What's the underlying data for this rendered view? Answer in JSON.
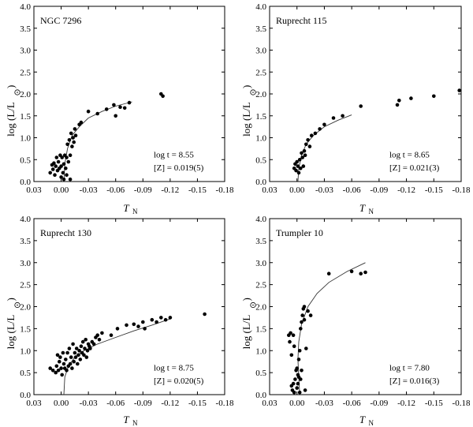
{
  "chart_data": [
    {
      "type": "scatter",
      "title": "NGC 7296",
      "xlabel": "T",
      "xlabel_sub": "N",
      "ylabel": "log (L/L",
      "ylabel_suffix": ")",
      "xlim": [
        0.03,
        -0.18
      ],
      "ylim": [
        0.0,
        4.0
      ],
      "xticks": [
        "0.03",
        "0.00",
        "-0.03",
        "-0.06",
        "-0.09",
        "-0.12",
        "-0.15",
        "-0.18"
      ],
      "yticks": [
        "0.0",
        "0.5",
        "1.0",
        "1.5",
        "2.0",
        "2.5",
        "3.0",
        "3.5",
        "4.0"
      ],
      "annotation_age": "log t = 8.55",
      "annotation_z": "[Z] = 0.019(5)",
      "points": [
        [
          0.012,
          0.2
        ],
        [
          0.01,
          0.38
        ],
        [
          0.009,
          0.28
        ],
        [
          0.008,
          0.42
        ],
        [
          0.007,
          0.15
        ],
        [
          0.006,
          0.35
        ],
        [
          0.005,
          0.55
        ],
        [
          0.004,
          0.25
        ],
        [
          0.003,
          0.45
        ],
        [
          0.002,
          0.3
        ],
        [
          0.001,
          0.6
        ],
        [
          0.0,
          0.1
        ],
        [
          0.0,
          0.35
        ],
        [
          -0.001,
          0.55
        ],
        [
          -0.002,
          0.2
        ],
        [
          -0.003,
          0.4
        ],
        [
          -0.003,
          0.05
        ],
        [
          -0.004,
          0.6
        ],
        [
          -0.005,
          0.3
        ],
        [
          -0.006,
          0.55
        ],
        [
          -0.006,
          0.15
        ],
        [
          -0.007,
          0.85
        ],
        [
          -0.008,
          0.45
        ],
        [
          -0.009,
          0.95
        ],
        [
          -0.01,
          0.6
        ],
        [
          -0.01,
          0.05
        ],
        [
          -0.011,
          1.1
        ],
        [
          -0.012,
          0.8
        ],
        [
          -0.013,
          1.0
        ],
        [
          -0.014,
          0.9
        ],
        [
          -0.015,
          1.2
        ],
        [
          -0.016,
          1.05
        ],
        [
          -0.02,
          1.3
        ],
        [
          -0.022,
          1.35
        ],
        [
          -0.03,
          1.6
        ],
        [
          -0.04,
          1.55
        ],
        [
          -0.05,
          1.65
        ],
        [
          -0.058,
          1.75
        ],
        [
          -0.06,
          1.5
        ],
        [
          -0.065,
          1.7
        ],
        [
          -0.07,
          1.68
        ],
        [
          -0.075,
          1.8
        ],
        [
          -0.11,
          2.0
        ],
        [
          -0.112,
          1.95
        ]
      ],
      "isochrone": [
        [
          -0.003,
          0.0
        ],
        [
          -0.004,
          0.4
        ],
        [
          -0.007,
          0.75
        ],
        [
          -0.012,
          1.05
        ],
        [
          -0.02,
          1.25
        ],
        [
          -0.03,
          1.45
        ],
        [
          -0.045,
          1.6
        ],
        [
          -0.06,
          1.72
        ],
        [
          -0.078,
          1.82
        ]
      ]
    },
    {
      "type": "scatter",
      "title": "Ruprecht 115",
      "xlabel": "T",
      "xlabel_sub": "N",
      "ylabel": "log (L/L",
      "ylabel_suffix": ")",
      "xlim": [
        0.03,
        -0.18
      ],
      "ylim": [
        0.0,
        4.0
      ],
      "xticks": [
        "0.03",
        "0.00",
        "-0.03",
        "-0.06",
        "-0.09",
        "-0.12",
        "-0.15",
        "-0.18"
      ],
      "yticks": [
        "0.0",
        "0.5",
        "1.0",
        "1.5",
        "2.0",
        "2.5",
        "3.0",
        "3.5",
        "4.0"
      ],
      "annotation_age": "log t = 8.65",
      "annotation_z": "[Z] = 0.021(3)",
      "points": [
        [
          0.003,
          0.3
        ],
        [
          0.002,
          0.4
        ],
        [
          0.001,
          0.25
        ],
        [
          0.0,
          0.45
        ],
        [
          -0.001,
          0.35
        ],
        [
          -0.002,
          0.2
        ],
        [
          -0.003,
          0.5
        ],
        [
          -0.004,
          0.3
        ],
        [
          -0.005,
          0.65
        ],
        [
          -0.006,
          0.55
        ],
        [
          -0.007,
          0.35
        ],
        [
          -0.008,
          0.7
        ],
        [
          -0.009,
          0.6
        ],
        [
          -0.01,
          0.85
        ],
        [
          -0.012,
          0.95
        ],
        [
          -0.014,
          0.8
        ],
        [
          -0.016,
          1.05
        ],
        [
          -0.02,
          1.1
        ],
        [
          -0.025,
          1.2
        ],
        [
          -0.03,
          1.3
        ],
        [
          -0.04,
          1.45
        ],
        [
          -0.05,
          1.5
        ],
        [
          -0.07,
          1.72
        ],
        [
          -0.11,
          1.75
        ],
        [
          -0.112,
          1.85
        ],
        [
          -0.125,
          1.9
        ],
        [
          -0.15,
          1.95
        ],
        [
          -0.178,
          2.08
        ]
      ],
      "isochrone": [
        [
          -0.001,
          0.0
        ],
        [
          -0.002,
          0.3
        ],
        [
          -0.005,
          0.6
        ],
        [
          -0.01,
          0.85
        ],
        [
          -0.018,
          1.05
        ],
        [
          -0.03,
          1.25
        ],
        [
          -0.045,
          1.4
        ],
        [
          -0.06,
          1.52
        ]
      ]
    },
    {
      "type": "scatter",
      "title": "Ruprecht 130",
      "xlabel": "T",
      "xlabel_sub": "N",
      "ylabel": "log (L/L",
      "ylabel_suffix": ")",
      "xlim": [
        0.03,
        -0.18
      ],
      "ylim": [
        0.0,
        4.0
      ],
      "xticks": [
        "0.03",
        "0.00",
        "-0.03",
        "-0.06",
        "-0.09",
        "-0.12",
        "-0.15",
        "-0.18"
      ],
      "yticks": [
        "0.0",
        "0.5",
        "1.0",
        "1.5",
        "2.0",
        "2.5",
        "3.0",
        "3.5",
        "4.0"
      ],
      "annotation_age": "log t = 8.75",
      "annotation_z": "[Z] = 0.020(5)",
      "points": [
        [
          0.012,
          0.6
        ],
        [
          0.009,
          0.55
        ],
        [
          0.006,
          0.5
        ],
        [
          0.005,
          0.65
        ],
        [
          0.004,
          0.9
        ],
        [
          0.003,
          0.55
        ],
        [
          0.002,
          0.75
        ],
        [
          0.001,
          0.85
        ],
        [
          0.0,
          0.6
        ],
        [
          -0.001,
          0.45
        ],
        [
          -0.002,
          0.95
        ],
        [
          -0.003,
          0.7
        ],
        [
          -0.004,
          0.6
        ],
        [
          -0.005,
          0.8
        ],
        [
          -0.006,
          0.55
        ],
        [
          -0.007,
          0.95
        ],
        [
          -0.008,
          0.65
        ],
        [
          -0.009,
          1.05
        ],
        [
          -0.01,
          0.7
        ],
        [
          -0.011,
          0.85
        ],
        [
          -0.012,
          0.6
        ],
        [
          -0.013,
          1.15
        ],
        [
          -0.014,
          0.75
        ],
        [
          -0.015,
          0.95
        ],
        [
          -0.016,
          0.85
        ],
        [
          -0.017,
          1.05
        ],
        [
          -0.018,
          0.7
        ],
        [
          -0.019,
          0.9
        ],
        [
          -0.02,
          1.0
        ],
        [
          -0.021,
          0.8
        ],
        [
          -0.022,
          1.1
        ],
        [
          -0.023,
          0.95
        ],
        [
          -0.024,
          1.2
        ],
        [
          -0.025,
          0.9
        ],
        [
          -0.026,
          1.05
        ],
        [
          -0.027,
          1.25
        ],
        [
          -0.028,
          0.85
        ],
        [
          -0.029,
          1.0
        ],
        [
          -0.03,
          1.15
        ],
        [
          -0.031,
          1.1
        ],
        [
          -0.032,
          1.05
        ],
        [
          -0.034,
          1.2
        ],
        [
          -0.036,
          1.15
        ],
        [
          -0.038,
          1.3
        ],
        [
          -0.04,
          1.35
        ],
        [
          -0.042,
          1.25
        ],
        [
          -0.045,
          1.4
        ],
        [
          -0.055,
          1.35
        ],
        [
          -0.062,
          1.5
        ],
        [
          -0.072,
          1.58
        ],
        [
          -0.08,
          1.6
        ],
        [
          -0.085,
          1.55
        ],
        [
          -0.09,
          1.65
        ],
        [
          -0.092,
          1.5
        ],
        [
          -0.1,
          1.7
        ],
        [
          -0.105,
          1.65
        ],
        [
          -0.11,
          1.75
        ],
        [
          -0.115,
          1.7
        ],
        [
          -0.12,
          1.75
        ],
        [
          -0.158,
          1.83
        ]
      ],
      "isochrone": [
        [
          -0.003,
          0.0
        ],
        [
          -0.004,
          0.4
        ],
        [
          -0.008,
          0.65
        ],
        [
          -0.015,
          0.85
        ],
        [
          -0.025,
          1.0
        ],
        [
          -0.04,
          1.15
        ],
        [
          -0.06,
          1.3
        ],
        [
          -0.08,
          1.45
        ],
        [
          -0.1,
          1.58
        ],
        [
          -0.12,
          1.72
        ]
      ]
    },
    {
      "type": "scatter",
      "title": "Trumpler 10",
      "xlabel": "T",
      "xlabel_sub": "N",
      "ylabel": "log (L/L",
      "ylabel_suffix": ")",
      "xlim": [
        0.03,
        -0.18
      ],
      "ylim": [
        0.0,
        4.0
      ],
      "xticks": [
        "0.03",
        "0.00",
        "-0.03",
        "-0.06",
        "-0.09",
        "-0.12",
        "-0.15",
        "-0.18"
      ],
      "yticks": [
        "0.0",
        "0.5",
        "1.0",
        "1.5",
        "2.0",
        "2.5",
        "3.0",
        "3.5",
        "4.0"
      ],
      "annotation_age": "log t = 7.80",
      "annotation_z": "[Z] = 0.016(3)",
      "points": [
        [
          0.009,
          1.35
        ],
        [
          0.008,
          1.2
        ],
        [
          0.007,
          1.4
        ],
        [
          0.006,
          0.9
        ],
        [
          0.006,
          0.2
        ],
        [
          0.005,
          0.1
        ],
        [
          0.004,
          1.35
        ],
        [
          0.004,
          0.25
        ],
        [
          0.003,
          0.05
        ],
        [
          0.003,
          1.1
        ],
        [
          0.002,
          0.35
        ],
        [
          0.001,
          0.55
        ],
        [
          0.0,
          0.15
        ],
        [
          0.0,
          0.6
        ],
        [
          -0.001,
          0.45
        ],
        [
          -0.001,
          0.25
        ],
        [
          -0.002,
          0.8
        ],
        [
          -0.002,
          0.4
        ],
        [
          -0.003,
          1.0
        ],
        [
          -0.003,
          0.05
        ],
        [
          -0.004,
          1.5
        ],
        [
          -0.004,
          0.35
        ],
        [
          -0.005,
          1.65
        ],
        [
          -0.005,
          0.55
        ],
        [
          -0.006,
          1.8
        ],
        [
          -0.007,
          1.95
        ],
        [
          -0.008,
          2.0
        ],
        [
          -0.008,
          1.7
        ],
        [
          -0.009,
          0.1
        ],
        [
          -0.01,
          1.05
        ],
        [
          -0.012,
          1.9
        ],
        [
          -0.015,
          1.8
        ],
        [
          -0.035,
          2.75
        ],
        [
          -0.06,
          2.8
        ],
        [
          -0.07,
          2.75
        ],
        [
          -0.075,
          2.78
        ]
      ],
      "isochrone": [
        [
          -0.003,
          0.0
        ],
        [
          -0.002,
          0.4
        ],
        [
          -0.001,
          0.8
        ],
        [
          -0.002,
          1.2
        ],
        [
          -0.005,
          1.6
        ],
        [
          -0.012,
          2.0
        ],
        [
          -0.022,
          2.3
        ],
        [
          -0.035,
          2.55
        ],
        [
          -0.055,
          2.8
        ],
        [
          -0.075,
          3.0
        ]
      ]
    }
  ]
}
